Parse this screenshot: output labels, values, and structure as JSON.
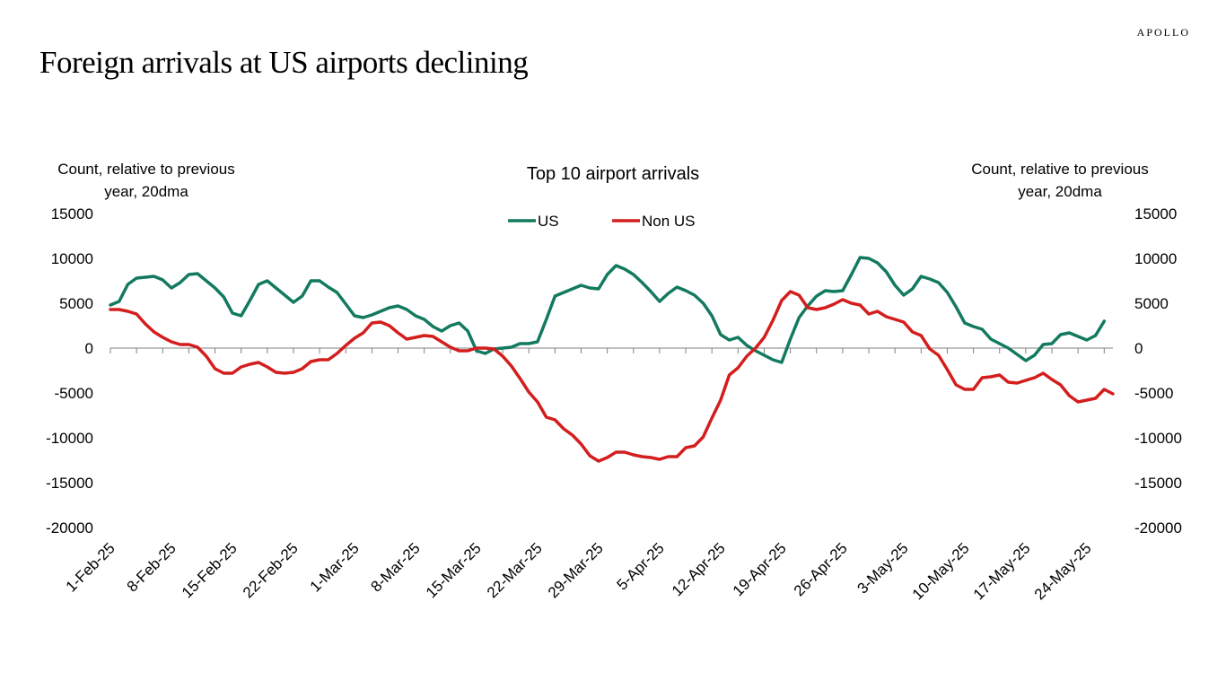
{
  "brand": "APOLLO",
  "title": "Foreign arrivals at US airports declining",
  "chart_data": {
    "type": "line",
    "title": "Top 10 airport arrivals",
    "ylabel_left": [
      "Count, relative to previous",
      "year, 20dma"
    ],
    "ylabel_right": [
      "Count, relative to previous",
      "year, 20dma"
    ],
    "ylim": [
      -20000,
      15000
    ],
    "y_ticks": [
      15000,
      10000,
      5000,
      0,
      -5000,
      -10000,
      -15000,
      -20000
    ],
    "x_start": "1-Feb-25",
    "x_end": "27-May-25",
    "x_tick_labels": [
      "1-Feb-25",
      "8-Feb-25",
      "15-Feb-25",
      "22-Feb-25",
      "1-Mar-25",
      "8-Mar-25",
      "15-Mar-25",
      "22-Mar-25",
      "29-Mar-25",
      "5-Apr-25",
      "12-Apr-25",
      "19-Apr-25",
      "26-Apr-25",
      "3-May-25",
      "10-May-25",
      "17-May-25",
      "24-May-25"
    ],
    "legend": {
      "position": "top-center",
      "entries": [
        "US",
        "Non US"
      ]
    },
    "colors": {
      "US": "#137a5f",
      "Non US": "#d41e1e",
      "axis": "#808080"
    },
    "series": [
      {
        "name": "US",
        "color": "#137a5f",
        "points": [
          [
            "1-Feb-25",
            4800
          ],
          [
            "2-Feb-25",
            5200
          ],
          [
            "3-Feb-25",
            7100
          ],
          [
            "4-Feb-25",
            7800
          ],
          [
            "5-Feb-25",
            7900
          ],
          [
            "6-Feb-25",
            8000
          ],
          [
            "7-Feb-25",
            7600
          ],
          [
            "8-Feb-25",
            6700
          ],
          [
            "9-Feb-25",
            7300
          ],
          [
            "10-Feb-25",
            8200
          ],
          [
            "11-Feb-25",
            8300
          ],
          [
            "12-Feb-25",
            7500
          ],
          [
            "13-Feb-25",
            6700
          ],
          [
            "14-Feb-25",
            5700
          ],
          [
            "15-Feb-25",
            3900
          ],
          [
            "16-Feb-25",
            3600
          ],
          [
            "17-Feb-25",
            5300
          ],
          [
            "18-Feb-25",
            7100
          ],
          [
            "19-Feb-25",
            7500
          ],
          [
            "20-Feb-25",
            6700
          ],
          [
            "21-Feb-25",
            5900
          ],
          [
            "22-Feb-25",
            5100
          ],
          [
            "23-Feb-25",
            5800
          ],
          [
            "24-Feb-25",
            7500
          ],
          [
            "25-Feb-25",
            7500
          ],
          [
            "26-Feb-25",
            6800
          ],
          [
            "27-Feb-25",
            6200
          ],
          [
            "28-Feb-25",
            4900
          ],
          [
            "1-Mar-25",
            3600
          ],
          [
            "2-Mar-25",
            3400
          ],
          [
            "3-Mar-25",
            3700
          ],
          [
            "4-Mar-25",
            4100
          ],
          [
            "5-Mar-25",
            4500
          ],
          [
            "6-Mar-25",
            4700
          ],
          [
            "7-Mar-25",
            4300
          ],
          [
            "8-Mar-25",
            3600
          ],
          [
            "9-Mar-25",
            3200
          ],
          [
            "10-Mar-25",
            2400
          ],
          [
            "11-Mar-25",
            1900
          ],
          [
            "12-Mar-25",
            2500
          ],
          [
            "13-Mar-25",
            2800
          ],
          [
            "14-Mar-25",
            1900
          ],
          [
            "15-Mar-25",
            -300
          ],
          [
            "16-Mar-25",
            -600
          ],
          [
            "17-Mar-25",
            -100
          ],
          [
            "18-Mar-25",
            0
          ],
          [
            "19-Mar-25",
            100
          ],
          [
            "20-Mar-25",
            500
          ],
          [
            "21-Mar-25",
            500
          ],
          [
            "22-Mar-25",
            700
          ],
          [
            "23-Mar-25",
            3200
          ],
          [
            "24-Mar-25",
            5800
          ],
          [
            "25-Mar-25",
            6200
          ],
          [
            "26-Mar-25",
            6600
          ],
          [
            "27-Mar-25",
            7000
          ],
          [
            "28-Mar-25",
            6700
          ],
          [
            "29-Mar-25",
            6600
          ],
          [
            "30-Mar-25",
            8200
          ],
          [
            "31-Mar-25",
            9200
          ],
          [
            "1-Apr-25",
            8800
          ],
          [
            "2-Apr-25",
            8200
          ],
          [
            "3-Apr-25",
            7300
          ],
          [
            "4-Apr-25",
            6300
          ],
          [
            "5-Apr-25",
            5200
          ],
          [
            "6-Apr-25",
            6100
          ],
          [
            "7-Apr-25",
            6800
          ],
          [
            "8-Apr-25",
            6400
          ],
          [
            "9-Apr-25",
            5900
          ],
          [
            "10-Apr-25",
            5000
          ],
          [
            "11-Apr-25",
            3600
          ],
          [
            "12-Apr-25",
            1500
          ],
          [
            "13-Apr-25",
            900
          ],
          [
            "14-Apr-25",
            1200
          ],
          [
            "15-Apr-25",
            300
          ],
          [
            "16-Apr-25",
            -300
          ],
          [
            "17-Apr-25",
            -800
          ],
          [
            "18-Apr-25",
            -1300
          ],
          [
            "19-Apr-25",
            -1600
          ],
          [
            "20-Apr-25",
            1000
          ],
          [
            "21-Apr-25",
            3400
          ],
          [
            "22-Apr-25",
            4700
          ],
          [
            "23-Apr-25",
            5800
          ],
          [
            "24-Apr-25",
            6400
          ],
          [
            "25-Apr-25",
            6300
          ],
          [
            "26-Apr-25",
            6400
          ],
          [
            "27-Apr-25",
            8200
          ],
          [
            "28-Apr-25",
            10100
          ],
          [
            "29-Apr-25",
            10000
          ],
          [
            "30-Apr-25",
            9500
          ],
          [
            "1-May-25",
            8500
          ],
          [
            "2-May-25",
            7000
          ],
          [
            "3-May-25",
            5900
          ],
          [
            "4-May-25",
            6600
          ],
          [
            "5-May-25",
            8000
          ],
          [
            "6-May-25",
            7700
          ],
          [
            "7-May-25",
            7300
          ],
          [
            "8-May-25",
            6200
          ],
          [
            "9-May-25",
            4600
          ],
          [
            "10-May-25",
            2800
          ],
          [
            "11-May-25",
            2400
          ],
          [
            "12-May-25",
            2100
          ],
          [
            "13-May-25",
            1000
          ],
          [
            "14-May-25",
            500
          ],
          [
            "15-May-25",
            0
          ],
          [
            "16-May-25",
            -700
          ],
          [
            "17-May-25",
            -1400
          ],
          [
            "18-May-25",
            -800
          ],
          [
            "19-May-25",
            400
          ],
          [
            "20-May-25",
            500
          ],
          [
            "21-May-25",
            1500
          ],
          [
            "22-May-25",
            1700
          ],
          [
            "23-May-25",
            1300
          ],
          [
            "24-May-25",
            900
          ],
          [
            "25-May-25",
            1400
          ],
          [
            "26-May-25",
            3000
          ]
        ]
      },
      {
        "name": "Non US",
        "color": "#d41e1e",
        "points": [
          [
            "1-Feb-25",
            4300
          ],
          [
            "2-Feb-25",
            4300
          ],
          [
            "3-Feb-25",
            4100
          ],
          [
            "4-Feb-25",
            3800
          ],
          [
            "5-Feb-25",
            2700
          ],
          [
            "6-Feb-25",
            1800
          ],
          [
            "7-Feb-25",
            1200
          ],
          [
            "8-Feb-25",
            700
          ],
          [
            "9-Feb-25",
            400
          ],
          [
            "10-Feb-25",
            400
          ],
          [
            "11-Feb-25",
            100
          ],
          [
            "12-Feb-25",
            -900
          ],
          [
            "13-Feb-25",
            -2300
          ],
          [
            "14-Feb-25",
            -2800
          ],
          [
            "15-Feb-25",
            -2800
          ],
          [
            "16-Feb-25",
            -2100
          ],
          [
            "17-Feb-25",
            -1800
          ],
          [
            "18-Feb-25",
            -1600
          ],
          [
            "19-Feb-25",
            -2100
          ],
          [
            "20-Feb-25",
            -2700
          ],
          [
            "21-Feb-25",
            -2800
          ],
          [
            "22-Feb-25",
            -2700
          ],
          [
            "23-Feb-25",
            -2300
          ],
          [
            "24-Feb-25",
            -1500
          ],
          [
            "25-Feb-25",
            -1300
          ],
          [
            "26-Feb-25",
            -1300
          ],
          [
            "27-Feb-25",
            -600
          ],
          [
            "28-Feb-25",
            300
          ],
          [
            "1-Mar-25",
            1100
          ],
          [
            "2-Mar-25",
            1700
          ],
          [
            "3-Mar-25",
            2800
          ],
          [
            "4-Mar-25",
            2900
          ],
          [
            "5-Mar-25",
            2500
          ],
          [
            "6-Mar-25",
            1700
          ],
          [
            "7-Mar-25",
            1000
          ],
          [
            "8-Mar-25",
            1200
          ],
          [
            "9-Mar-25",
            1400
          ],
          [
            "10-Mar-25",
            1300
          ],
          [
            "11-Mar-25",
            700
          ],
          [
            "12-Mar-25",
            100
          ],
          [
            "13-Mar-25",
            -300
          ],
          [
            "14-Mar-25",
            -300
          ],
          [
            "15-Mar-25",
            0
          ],
          [
            "16-Mar-25",
            0
          ],
          [
            "17-Mar-25",
            -100
          ],
          [
            "18-Mar-25",
            -900
          ],
          [
            "19-Mar-25",
            -2000
          ],
          [
            "20-Mar-25",
            -3400
          ],
          [
            "21-Mar-25",
            -4900
          ],
          [
            "22-Mar-25",
            -6000
          ],
          [
            "23-Mar-25",
            -7700
          ],
          [
            "24-Mar-25",
            -8000
          ],
          [
            "25-Mar-25",
            -9000
          ],
          [
            "26-Mar-25",
            -9700
          ],
          [
            "27-Mar-25",
            -10700
          ],
          [
            "28-Mar-25",
            -12000
          ],
          [
            "29-Mar-25",
            -12600
          ],
          [
            "30-Mar-25",
            -12200
          ],
          [
            "31-Mar-25",
            -11600
          ],
          [
            "1-Apr-25",
            -11600
          ],
          [
            "2-Apr-25",
            -11900
          ],
          [
            "3-Apr-25",
            -12100
          ],
          [
            "4-Apr-25",
            -12200
          ],
          [
            "5-Apr-25",
            -12400
          ],
          [
            "6-Apr-25",
            -12100
          ],
          [
            "7-Apr-25",
            -12100
          ],
          [
            "8-Apr-25",
            -11100
          ],
          [
            "9-Apr-25",
            -10900
          ],
          [
            "10-Apr-25",
            -9900
          ],
          [
            "11-Apr-25",
            -7800
          ],
          [
            "12-Apr-25",
            -5800
          ],
          [
            "13-Apr-25",
            -3000
          ],
          [
            "14-Apr-25",
            -2200
          ],
          [
            "15-Apr-25",
            -900
          ],
          [
            "16-Apr-25",
            0
          ],
          [
            "17-Apr-25",
            1200
          ],
          [
            "18-Apr-25",
            3100
          ],
          [
            "19-Apr-25",
            5300
          ],
          [
            "20-Apr-25",
            6300
          ],
          [
            "21-Apr-25",
            5900
          ],
          [
            "22-Apr-25",
            4500
          ],
          [
            "23-Apr-25",
            4300
          ],
          [
            "24-Apr-25",
            4500
          ],
          [
            "25-Apr-25",
            4900
          ],
          [
            "26-Apr-25",
            5400
          ],
          [
            "27-Apr-25",
            5000
          ],
          [
            "28-Apr-25",
            4800
          ],
          [
            "29-Apr-25",
            3800
          ],
          [
            "30-Apr-25",
            4100
          ],
          [
            "1-May-25",
            3500
          ],
          [
            "2-May-25",
            3200
          ],
          [
            "3-May-25",
            2900
          ],
          [
            "4-May-25",
            1800
          ],
          [
            "5-May-25",
            1400
          ],
          [
            "6-May-25",
            -100
          ],
          [
            "7-May-25",
            -800
          ],
          [
            "8-May-25",
            -2400
          ],
          [
            "9-May-25",
            -4100
          ],
          [
            "10-May-25",
            -4600
          ],
          [
            "11-May-25",
            -4600
          ],
          [
            "12-May-25",
            -3300
          ],
          [
            "13-May-25",
            -3200
          ],
          [
            "14-May-25",
            -3000
          ],
          [
            "15-May-25",
            -3800
          ],
          [
            "16-May-25",
            -3900
          ],
          [
            "17-May-25",
            -3600
          ],
          [
            "18-May-25",
            -3300
          ],
          [
            "19-May-25",
            -2800
          ],
          [
            "20-May-25",
            -3500
          ],
          [
            "21-May-25",
            -4100
          ],
          [
            "22-May-25",
            -5300
          ],
          [
            "23-May-25",
            -6000
          ],
          [
            "24-May-25",
            -5800
          ],
          [
            "25-May-25",
            -5600
          ],
          [
            "26-May-25",
            -4600
          ],
          [
            "27-May-25",
            -5100
          ]
        ]
      }
    ]
  }
}
